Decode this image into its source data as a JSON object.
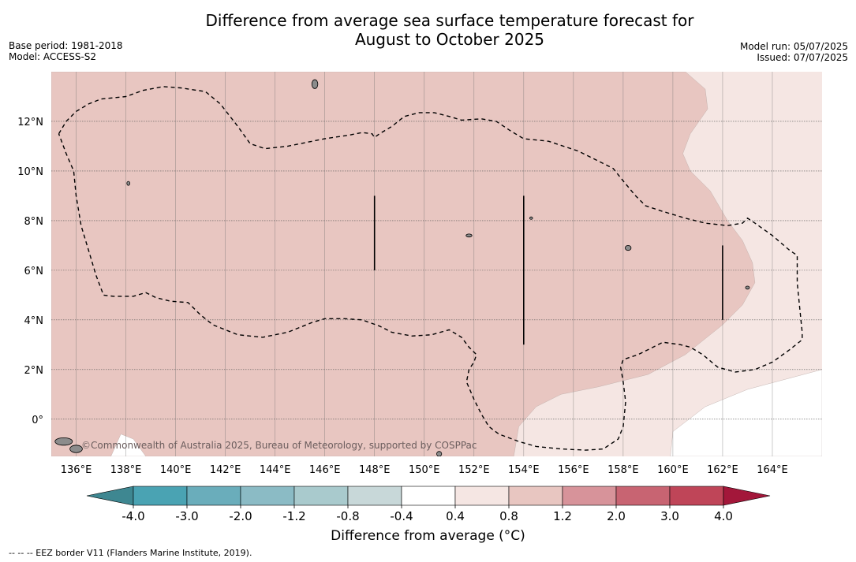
{
  "title": "Difference from average sea surface temperature forecast for\nAugust to October 2025",
  "meta_left": {
    "base_period": "Base period: 1981-2018",
    "model": "Model: ACCESS-S2"
  },
  "meta_right": {
    "model_run": "Model run: 05/07/2025",
    "issued": "Issued: 07/07/2025"
  },
  "map": {
    "lon_range": [
      135.0,
      166.0
    ],
    "lat_range": [
      -1.5,
      14.0
    ],
    "lon_ticks": [
      {
        "value": 136,
        "label": "136°E"
      },
      {
        "value": 138,
        "label": "138°E"
      },
      {
        "value": 140,
        "label": "140°E"
      },
      {
        "value": 142,
        "label": "142°E"
      },
      {
        "value": 144,
        "label": "144°E"
      },
      {
        "value": 146,
        "label": "146°E"
      },
      {
        "value": 148,
        "label": "148°E"
      },
      {
        "value": 150,
        "label": "150°E"
      },
      {
        "value": 152,
        "label": "152°E"
      },
      {
        "value": 154,
        "label": "154°E"
      },
      {
        "value": 156,
        "label": "156°E"
      },
      {
        "value": 158,
        "label": "158°E"
      },
      {
        "value": 160,
        "label": "160°E"
      },
      {
        "value": 162,
        "label": "162°E"
      },
      {
        "value": 164,
        "label": "164°E"
      }
    ],
    "lat_ticks": [
      {
        "value": 0,
        "label": "0°"
      },
      {
        "value": 2,
        "label": "2°N"
      },
      {
        "value": 4,
        "label": "4°N"
      },
      {
        "value": 6,
        "label": "6°N"
      },
      {
        "value": 8,
        "label": "8°N"
      },
      {
        "value": 10,
        "label": "10°N"
      },
      {
        "value": 12,
        "label": "12°N"
      }
    ],
    "colors": {
      "band_0_8_to_1_2": "#e8c6c1",
      "band_0_4_to_0_8": "#f5e6e3",
      "band_neg0_4_to_0_4": "#ffffff",
      "land": "#8c8c8c"
    },
    "anomaly_bands": [
      {
        "range": "0.8 to 1.2",
        "color": "#e8c6c1",
        "polygon": [
          [
            135,
            14
          ],
          [
            160.5,
            14
          ],
          [
            161.3,
            13.3
          ],
          [
            161.4,
            12.5
          ],
          [
            160.7,
            11.5
          ],
          [
            160.4,
            10.7
          ],
          [
            160.7,
            10
          ],
          [
            161.5,
            9.2
          ],
          [
            162.2,
            8
          ],
          [
            162.8,
            7.2
          ],
          [
            163.2,
            6.3
          ],
          [
            163.3,
            5.5
          ],
          [
            162.8,
            4.6
          ],
          [
            162,
            3.8
          ],
          [
            160.5,
            2.6
          ],
          [
            159,
            1.8
          ],
          [
            157,
            1.3
          ],
          [
            155.5,
            1.0
          ],
          [
            154.5,
            0.5
          ],
          [
            153.8,
            -0.3
          ],
          [
            153.6,
            -1.5
          ],
          [
            135,
            -1.5
          ]
        ]
      },
      {
        "range": "-0.4 to 0.4",
        "color": "#ffffff",
        "polygon": [
          [
            166,
            2
          ],
          [
            163,
            1.2
          ],
          [
            161.3,
            0.5
          ],
          [
            160,
            -0.5
          ],
          [
            159.9,
            -1.5
          ],
          [
            166,
            -1.5
          ]
        ]
      },
      {
        "range": "-0.4 to 0.4",
        "color": "#ffffff",
        "polygon": [
          [
            137.4,
            -1.5
          ],
          [
            137.8,
            -0.6
          ],
          [
            138.3,
            -0.8
          ],
          [
            138.8,
            -1.5
          ]
        ]
      }
    ],
    "eez_borders": [
      [
        [
          135.3,
          11.5
        ],
        [
          135.6,
          12.0
        ],
        [
          136.0,
          12.4
        ],
        [
          136.5,
          12.7
        ],
        [
          137.0,
          12.9
        ],
        [
          137.5,
          12.95
        ],
        [
          138.0,
          13.0
        ],
        [
          138.7,
          13.25
        ],
        [
          139.5,
          13.4
        ],
        [
          140.2,
          13.35
        ],
        [
          141.2,
          13.2
        ],
        [
          141.8,
          12.7
        ],
        [
          142.5,
          11.8
        ],
        [
          143.0,
          11.1
        ],
        [
          143.6,
          10.9
        ],
        [
          144.5,
          11.0
        ],
        [
          146.0,
          11.3
        ],
        [
          147.0,
          11.45
        ],
        [
          147.5,
          11.55
        ],
        [
          147.9,
          11.5
        ],
        [
          148.0,
          11.35
        ],
        [
          148.2,
          11.5
        ],
        [
          148.7,
          11.8
        ],
        [
          149.2,
          12.2
        ],
        [
          149.8,
          12.35
        ],
        [
          150.4,
          12.35
        ],
        [
          151.0,
          12.2
        ],
        [
          151.5,
          12.05
        ],
        [
          152.3,
          12.1
        ],
        [
          152.9,
          12.0
        ],
        [
          153.5,
          11.6
        ],
        [
          154.0,
          11.3
        ],
        [
          155.0,
          11.2
        ],
        [
          156.2,
          10.8
        ],
        [
          157.0,
          10.4
        ],
        [
          157.6,
          10.1
        ],
        [
          158.0,
          9.6
        ],
        [
          158.5,
          9.0
        ],
        [
          158.9,
          8.6
        ],
        [
          159.5,
          8.4
        ],
        [
          160.5,
          8.1
        ],
        [
          161.3,
          7.9
        ],
        [
          162.2,
          7.8
        ],
        [
          162.8,
          7.9
        ],
        [
          163.0,
          8.1
        ],
        [
          163.3,
          7.9
        ],
        [
          164.0,
          7.4
        ],
        [
          164.7,
          6.8
        ],
        [
          165.0,
          6.6
        ],
        [
          165.0,
          5.5
        ],
        [
          165.1,
          4.5
        ],
        [
          165.2,
          3.5
        ],
        [
          165.2,
          3.2
        ],
        [
          164.7,
          2.8
        ],
        [
          164.0,
          2.3
        ],
        [
          163.3,
          2.0
        ],
        [
          162.5,
          1.9
        ],
        [
          161.8,
          2.1
        ],
        [
          161.2,
          2.6
        ],
        [
          160.7,
          2.9
        ],
        [
          160.3,
          3.0
        ],
        [
          159.6,
          3.1
        ],
        [
          159.2,
          2.9
        ],
        [
          158.6,
          2.6
        ],
        [
          158.0,
          2.4
        ],
        [
          157.9,
          2.1
        ],
        [
          158.0,
          1.5
        ],
        [
          158.1,
          0.7
        ],
        [
          158.0,
          -0.3
        ],
        [
          157.8,
          -0.8
        ],
        [
          157.5,
          -1.0
        ],
        [
          157.2,
          -1.2
        ],
        [
          156.5,
          -1.25
        ],
        [
          155.5,
          -1.2
        ],
        [
          154.5,
          -1.1
        ],
        [
          153.8,
          -0.9
        ],
        [
          153.0,
          -0.6
        ],
        [
          152.6,
          -0.3
        ],
        [
          152.3,
          0.2
        ],
        [
          152.0,
          0.8
        ],
        [
          151.7,
          1.5
        ],
        [
          151.8,
          2.0
        ],
        [
          152.0,
          2.3
        ],
        [
          152.1,
          2.6
        ],
        [
          151.8,
          2.9
        ],
        [
          151.5,
          3.3
        ],
        [
          151.0,
          3.6
        ],
        [
          150.3,
          3.4
        ],
        [
          149.5,
          3.35
        ],
        [
          148.7,
          3.5
        ],
        [
          148.2,
          3.75
        ],
        [
          147.5,
          4.0
        ],
        [
          146.8,
          4.05
        ],
        [
          146.0,
          4.05
        ],
        [
          145.5,
          3.9
        ],
        [
          145.0,
          3.7
        ],
        [
          144.5,
          3.5
        ],
        [
          143.5,
          3.3
        ],
        [
          142.5,
          3.4
        ],
        [
          141.5,
          3.8
        ],
        [
          141.0,
          4.2
        ],
        [
          140.5,
          4.7
        ],
        [
          139.8,
          4.75
        ],
        [
          139.2,
          4.9
        ],
        [
          138.8,
          5.1
        ],
        [
          138.3,
          4.95
        ],
        [
          137.5,
          4.95
        ],
        [
          137.1,
          5.0
        ],
        [
          136.8,
          5.8
        ],
        [
          136.5,
          6.8
        ],
        [
          136.2,
          7.8
        ],
        [
          136.0,
          9.0
        ],
        [
          135.9,
          10.0
        ],
        [
          135.6,
          10.7
        ],
        [
          135.3,
          11.5
        ]
      ]
    ],
    "eez_solid_segments": [
      [
        [
          148.0,
          9.0
        ],
        [
          148.0,
          6.0
        ]
      ],
      [
        [
          154.0,
          9.0
        ],
        [
          154.0,
          3.0
        ]
      ],
      [
        [
          162.0,
          7.0
        ],
        [
          162.0,
          4.0
        ]
      ]
    ],
    "islands": [
      {
        "lon": 135.5,
        "lat": -0.9,
        "rx": 0.35,
        "ry": 0.15
      },
      {
        "lon": 136.0,
        "lat": -1.2,
        "rx": 0.25,
        "ry": 0.15
      },
      {
        "lon": 145.6,
        "lat": 13.5,
        "rx": 0.12,
        "ry": 0.18
      },
      {
        "lon": 138.1,
        "lat": 9.5,
        "rx": 0.06,
        "ry": 0.08
      },
      {
        "lon": 151.8,
        "lat": 7.4,
        "rx": 0.12,
        "ry": 0.06
      },
      {
        "lon": 158.2,
        "lat": 6.9,
        "rx": 0.12,
        "ry": 0.1
      },
      {
        "lon": 163.0,
        "lat": 5.3,
        "rx": 0.08,
        "ry": 0.06
      },
      {
        "lon": 154.3,
        "lat": 8.1,
        "rx": 0.06,
        "ry": 0.05
      },
      {
        "lon": 150.6,
        "lat": -1.4,
        "rx": 0.1,
        "ry": 0.1
      }
    ]
  },
  "copyright": "©Commonwealth of Australia 2025, Bureau of Meteorology, supported by COSPPac",
  "colorbar": {
    "title": "Difference from average (°C)",
    "ticks": [
      "-4.0",
      "-3.0",
      "-2.0",
      "-1.2",
      "-0.8",
      "-0.4",
      "0.4",
      "0.8",
      "1.2",
      "2.0",
      "3.0",
      "4.0"
    ],
    "low_extend_color": "#3e8791",
    "high_extend_color": "#a3173a",
    "colors": [
      "#4aa3b3",
      "#6aadbb",
      "#8bbbc5",
      "#a9cacd",
      "#c8d8d9",
      "#ffffff",
      "#f5e6e3",
      "#e8c6c1",
      "#d7939a",
      "#c86472",
      "#bf4558"
    ]
  },
  "eez_note": "--  --  -- EEZ border V11 (Flanders Marine Institute, 2019)."
}
